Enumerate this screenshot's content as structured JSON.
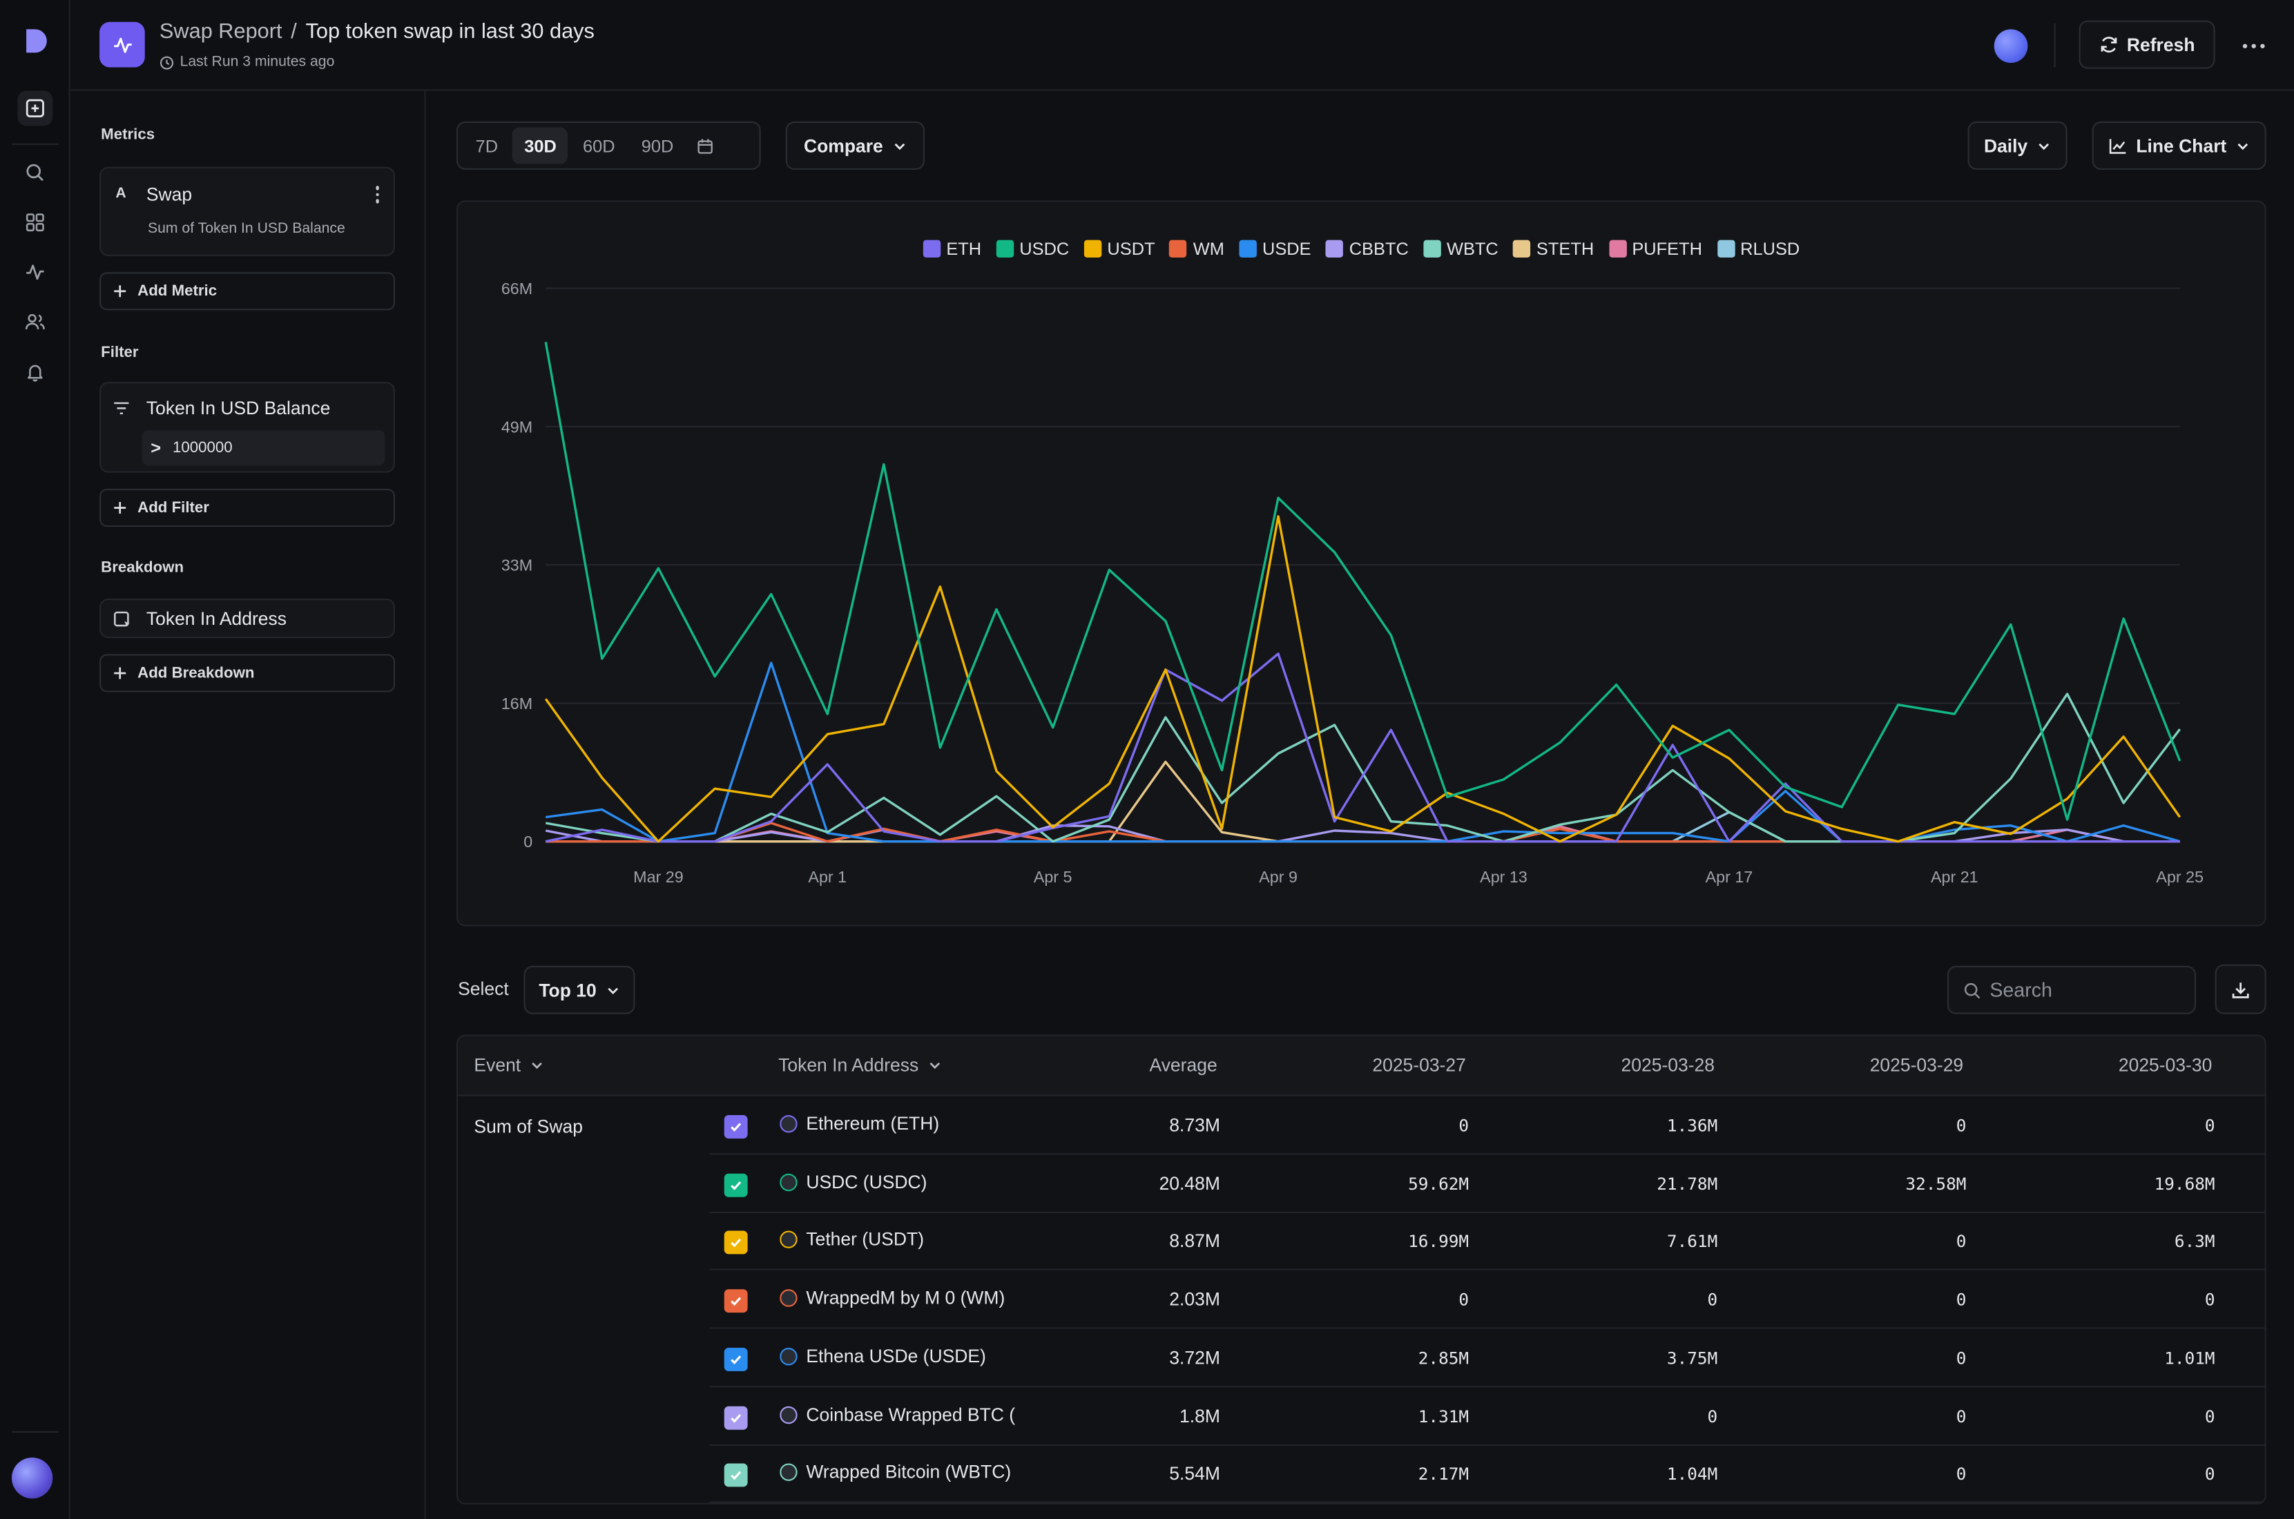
{
  "header": {
    "crumb": "Swap Report",
    "separator": "/",
    "title": "Top token swap in last 30 days",
    "last_run": "Last Run 3 minutes ago",
    "refresh_label": "Refresh"
  },
  "sidebar": {
    "metrics_label": "Metrics",
    "metric": {
      "letter": "A",
      "name": "Swap",
      "desc": "Sum of Token In USD Balance"
    },
    "add_metric": "Add Metric",
    "filter_label": "Filter",
    "filter": {
      "name": "Token In USD Balance",
      "op": ">",
      "value": "1000000"
    },
    "add_filter": "Add Filter",
    "breakdown_label": "Breakdown",
    "breakdown": {
      "name": "Token In Address"
    },
    "add_breakdown": "Add Breakdown"
  },
  "toolbar": {
    "ranges": [
      "7D",
      "30D",
      "60D",
      "90D"
    ],
    "active_range": "30D",
    "compare": "Compare",
    "interval": "Daily",
    "chart_type": "Line Chart"
  },
  "chart_data": {
    "type": "line",
    "y_ticks": [
      "66M",
      "49M",
      "33M",
      "16M",
      "0"
    ],
    "x_tick_labels": [
      "Mar 29",
      "Apr 1",
      "Apr 5",
      "Apr 9",
      "Apr 13",
      "Apr 17",
      "Apr 21",
      "Apr 25"
    ],
    "x_tick_index": [
      2,
      5,
      9,
      13,
      17,
      21,
      25,
      29
    ],
    "ylim": [
      0,
      66
    ],
    "legend_position": "top-center",
    "grid": true,
    "series": [
      {
        "name": "USDC",
        "color": "#12b886",
        "values": [
          59.6,
          21.8,
          32.6,
          19.7,
          29.5,
          15.2,
          45,
          11.2,
          27.7,
          13.6,
          32.4,
          26.3,
          8.5,
          41,
          34.5,
          24.6,
          5.3,
          7.4,
          11.8,
          18.7,
          10,
          13.3,
          6.5,
          4.1,
          16.3,
          15.2,
          25.9,
          2.6,
          26.6,
          9.6
        ]
      },
      {
        "name": "USDT",
        "color": "#f0b400",
        "values": [
          17,
          7.6,
          0,
          6.3,
          5.3,
          12.8,
          14,
          30.4,
          8.4,
          1.7,
          6.9,
          20.5,
          1.5,
          38.8,
          2.9,
          1.2,
          5.8,
          3.3,
          0,
          3.2,
          13.8,
          9.9,
          3.6,
          1.5,
          0,
          2.3,
          0.9,
          5.1,
          12.5,
          2.9
        ]
      },
      {
        "name": "ETH",
        "color": "#7c6cf0",
        "values": [
          0,
          1.4,
          0,
          0,
          2.4,
          9.2,
          1.2,
          0,
          0,
          1.6,
          3,
          20.5,
          16.8,
          22.4,
          2.4,
          13.3,
          0,
          0,
          0,
          0,
          11.5,
          0,
          6.9,
          0,
          0,
          0,
          0,
          0,
          0,
          0
        ]
      },
      {
        "name": "WM",
        "color": "#e8643c",
        "values": [
          0,
          0,
          0,
          0,
          2.2,
          0,
          1.5,
          0,
          1.4,
          0,
          1.2,
          0,
          0,
          0,
          0,
          0,
          0,
          0,
          1.5,
          0,
          0,
          0,
          0,
          0,
          0,
          0,
          0,
          0,
          0,
          0
        ]
      },
      {
        "name": "USDE",
        "color": "#2b8cf0",
        "values": [
          2.9,
          3.8,
          0,
          1,
          21.3,
          1,
          0,
          0,
          0,
          0,
          0,
          0,
          0,
          0,
          0,
          0,
          0,
          1.2,
          1,
          1,
          1,
          0,
          6,
          0,
          0,
          1.4,
          1.9,
          0,
          1.9,
          0
        ]
      },
      {
        "name": "CBBTC",
        "color": "#a99cf0",
        "values": [
          1.3,
          0,
          0,
          0,
          1.1,
          0,
          1.4,
          0,
          0,
          1.9,
          1.8,
          0,
          0,
          0,
          1.3,
          1,
          0,
          0,
          0,
          0,
          0,
          0,
          0,
          0,
          0,
          0,
          1,
          1.4,
          0,
          0
        ]
      },
      {
        "name": "WBTC",
        "color": "#7fd3c0",
        "values": [
          2.2,
          1,
          0,
          0,
          3.3,
          1.1,
          5.2,
          0.8,
          5.4,
          0,
          2.6,
          14.8,
          4.6,
          10.5,
          13.9,
          2.4,
          1.9,
          0,
          2,
          3.2,
          8.5,
          3.5,
          0,
          0,
          0,
          1,
          7.5,
          17.6,
          4.6,
          13.4
        ]
      },
      {
        "name": "STETH",
        "color": "#e8c88a",
        "values": [
          0,
          0,
          0,
          0,
          0,
          0,
          0,
          0,
          0,
          0,
          0,
          9.5,
          1.1,
          0,
          0,
          0,
          0,
          0,
          0,
          0,
          0,
          0,
          0,
          0,
          0,
          0,
          0,
          0,
          0,
          0
        ]
      },
      {
        "name": "PUFETH",
        "color": "#e07aa0",
        "values": [
          0,
          0,
          0,
          0,
          1.2,
          0,
          1.5,
          0,
          1.2,
          0,
          0,
          0,
          0,
          0,
          0,
          0,
          0,
          0,
          1.8,
          0,
          0,
          0,
          0,
          0,
          0,
          0,
          0,
          1.4,
          0,
          0
        ]
      },
      {
        "name": "RLUSD",
        "color": "#8fc8e0",
        "values": [
          0,
          0,
          0,
          0,
          0,
          0,
          0,
          0,
          0,
          0,
          0,
          0,
          0,
          0,
          0,
          0,
          0,
          0,
          0,
          0,
          0,
          3.5,
          0,
          0,
          0,
          0,
          0,
          0,
          0,
          0
        ]
      }
    ]
  },
  "table_controls": {
    "select_label": "Select",
    "select_value": "Top 10",
    "search_placeholder": "Search"
  },
  "table": {
    "headers": {
      "event": "Event",
      "token": "Token In Address",
      "average": "Average",
      "d1": "2025-03-27",
      "d2": "2025-03-28",
      "d3": "2025-03-29",
      "d4": "2025-03-30"
    },
    "event": "Sum of Swap",
    "rows": [
      {
        "token": "Ethereum (ETH)",
        "color": "#7c6cf0",
        "icon": "ethereum-icon",
        "average": "8.73M",
        "d1": "0",
        "d2": "1.36M",
        "d3": "0",
        "d4": "0"
      },
      {
        "token": "USDC (USDC)",
        "color": "#12b886",
        "icon": "usdc-icon",
        "average": "20.48M",
        "d1": "59.62M",
        "d2": "21.78M",
        "d3": "32.58M",
        "d4": "19.68M"
      },
      {
        "token": "Tether (USDT)",
        "color": "#f0b400",
        "icon": "tether-icon",
        "average": "8.87M",
        "d1": "16.99M",
        "d2": "7.61M",
        "d3": "0",
        "d4": "6.3M"
      },
      {
        "token": "WrappedM by M 0 (WM)",
        "color": "#e8643c",
        "icon": "wrappedm-icon",
        "average": "2.03M",
        "d1": "0",
        "d2": "0",
        "d3": "0",
        "d4": "0"
      },
      {
        "token": "Ethena USDe (USDE)",
        "color": "#2b8cf0",
        "icon": "ethena-icon",
        "average": "3.72M",
        "d1": "2.85M",
        "d2": "3.75M",
        "d3": "0",
        "d4": "1.01M"
      },
      {
        "token": "Coinbase Wrapped BTC (",
        "color": "#a99cf0",
        "icon": "cbbtc-icon",
        "average": "1.8M",
        "d1": "1.31M",
        "d2": "0",
        "d3": "0",
        "d4": "0"
      },
      {
        "token": "Wrapped Bitcoin (WBTC)",
        "color": "#7fd3c0",
        "icon": "wbtc-icon",
        "average": "5.54M",
        "d1": "2.17M",
        "d2": "1.04M",
        "d3": "0",
        "d4": "0"
      }
    ]
  }
}
